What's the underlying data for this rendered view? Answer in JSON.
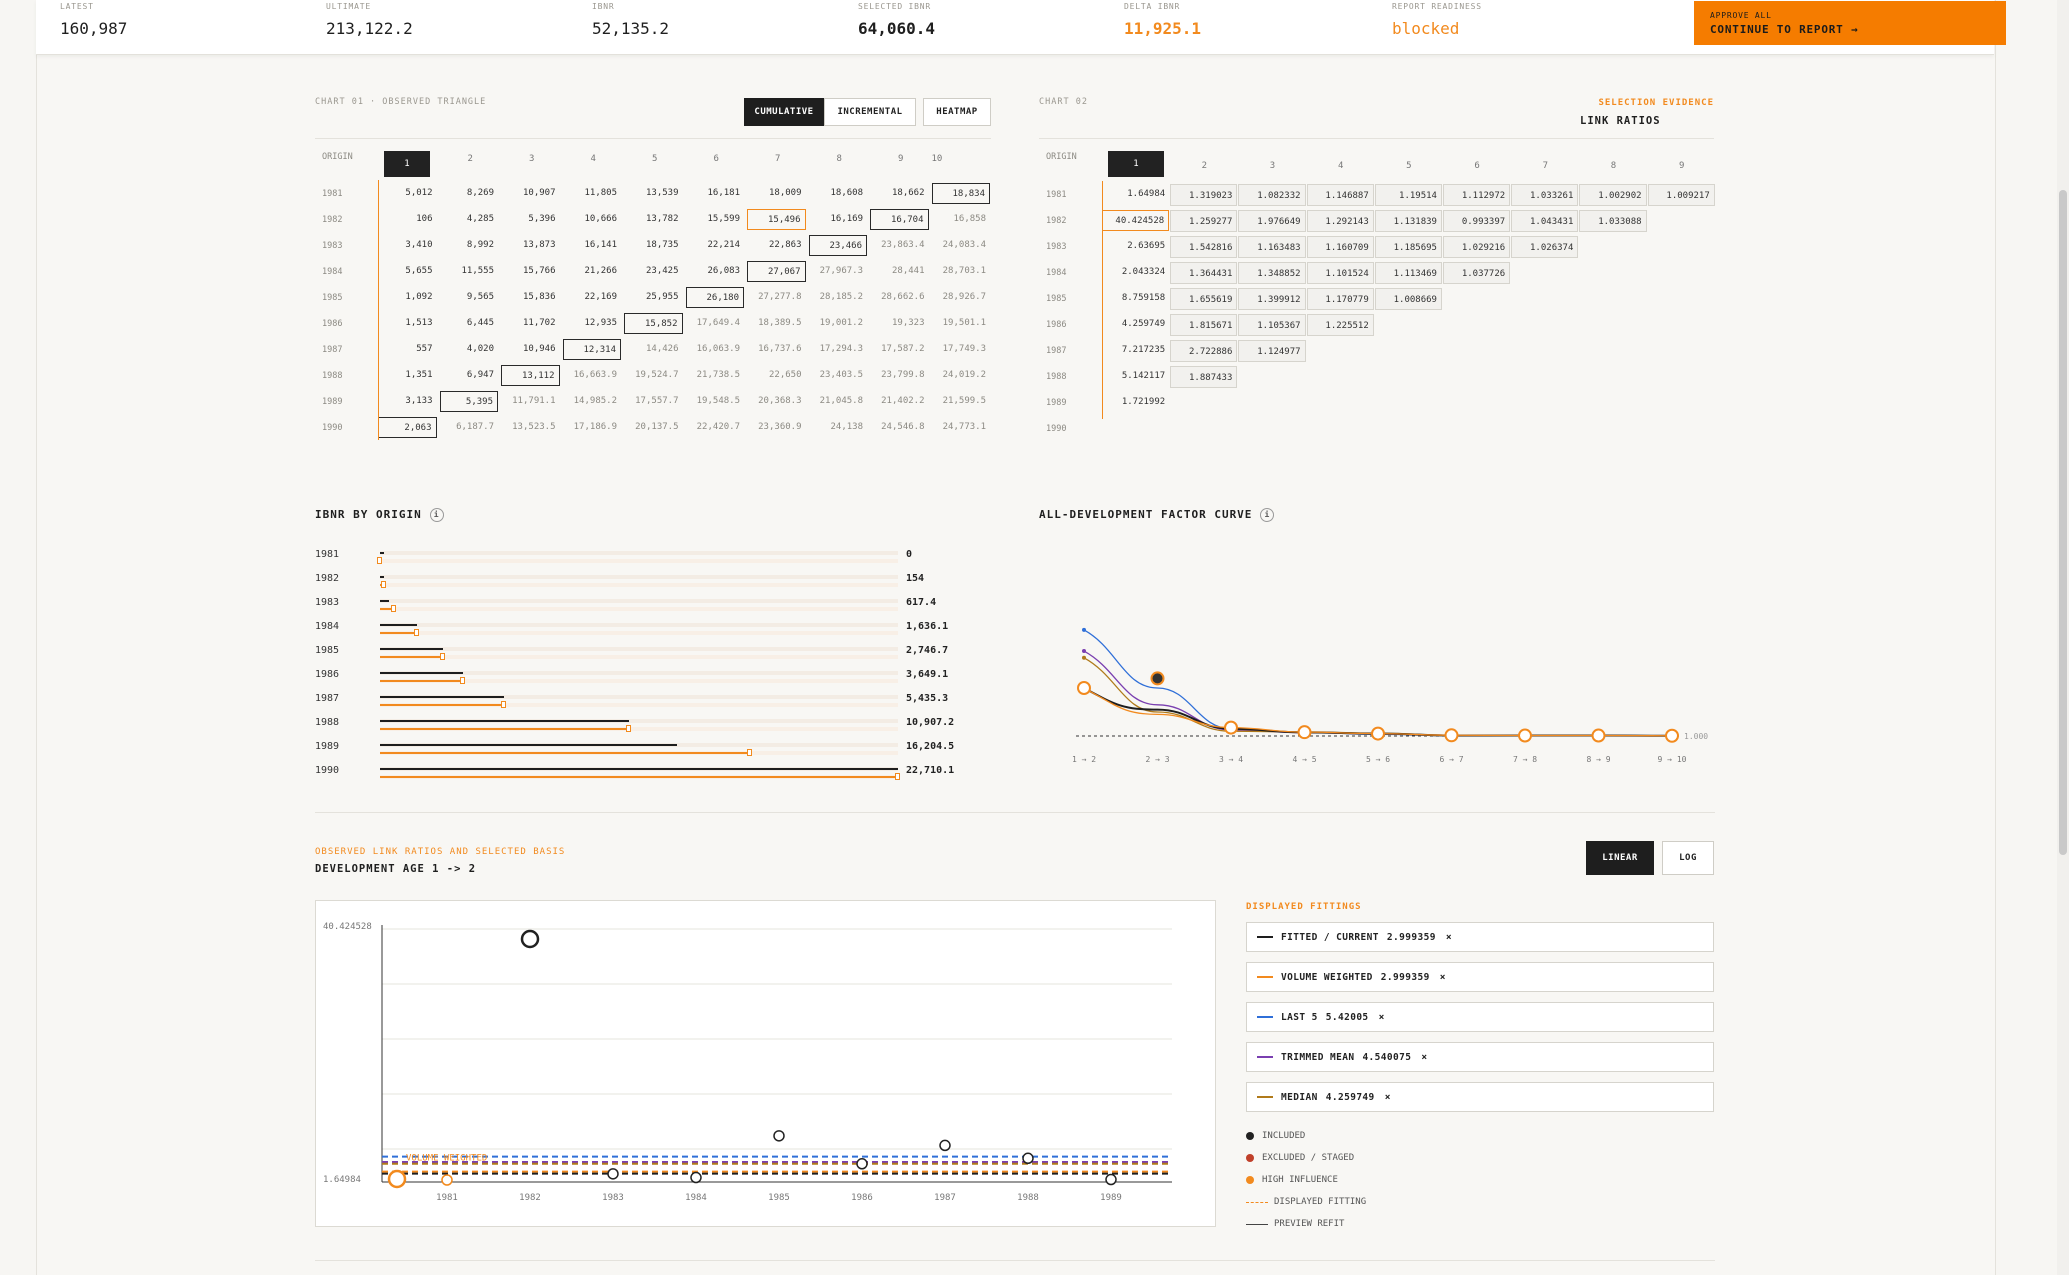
{
  "kpis": [
    {
      "label": "LATEST",
      "value": "160,987",
      "style": ""
    },
    {
      "label": "ULTIMATE",
      "value": "213,122.2",
      "style": ""
    },
    {
      "label": "IBNR",
      "value": "52,135.2",
      "style": ""
    },
    {
      "label": "SELECTED IBNR",
      "value": "64,060.4",
      "style": "bold"
    },
    {
      "label": "DELTA IBNR",
      "value": "11,925.1",
      "style": "orange bold"
    },
    {
      "label": "REPORT READINESS",
      "value": "blocked",
      "style": "orange"
    }
  ],
  "approve": {
    "line1": "APPROVE ALL",
    "line2": "CONTINUE TO REPORT →"
  },
  "chart1": {
    "label": "CHART 01 · OBSERVED TRIANGLE",
    "tabs": [
      "CUMULATIVE",
      "INCREMENTAL",
      "HEATMAP"
    ],
    "active_tab": "CUMULATIVE",
    "origin_label": "ORIGIN",
    "columns": [
      "1",
      "2",
      "3",
      "4",
      "5",
      "6",
      "7",
      "8",
      "9",
      "10"
    ],
    "selected_column": "1",
    "rows": [
      {
        "origin": "1981",
        "cells": [
          "5,012",
          "8,269",
          "10,907",
          "11,805",
          "13,539",
          "16,181",
          "18,009",
          "18,608",
          "18,662",
          "18,834"
        ]
      },
      {
        "origin": "1982",
        "cells": [
          "106",
          "4,285",
          "5,396",
          "10,666",
          "13,782",
          "15,599",
          "15,496",
          "16,169",
          "16,704",
          "16,858"
        ]
      },
      {
        "origin": "1983",
        "cells": [
          "3,410",
          "8,992",
          "13,873",
          "16,141",
          "18,735",
          "22,214",
          "22,863",
          "23,466",
          "23,863.4",
          "24,083.4"
        ]
      },
      {
        "origin": "1984",
        "cells": [
          "5,655",
          "11,555",
          "15,766",
          "21,266",
          "23,425",
          "26,083",
          "27,067",
          "27,967.3",
          "28,441",
          "28,703.1"
        ]
      },
      {
        "origin": "1985",
        "cells": [
          "1,092",
          "9,565",
          "15,836",
          "22,169",
          "25,955",
          "26,180",
          "27,277.8",
          "28,185.2",
          "28,662.6",
          "28,926.7"
        ]
      },
      {
        "origin": "1986",
        "cells": [
          "1,513",
          "6,445",
          "11,702",
          "12,935",
          "15,852",
          "17,649.4",
          "18,389.5",
          "19,001.2",
          "19,323",
          "19,501.1"
        ]
      },
      {
        "origin": "1987",
        "cells": [
          "557",
          "4,020",
          "10,946",
          "12,314",
          "14,426",
          "16,063.9",
          "16,737.6",
          "17,294.3",
          "17,587.2",
          "17,749.3"
        ]
      },
      {
        "origin": "1988",
        "cells": [
          "1,351",
          "6,947",
          "13,112",
          "16,663.9",
          "19,524.7",
          "21,738.5",
          "22,650",
          "23,403.5",
          "23,799.8",
          "24,019.2"
        ]
      },
      {
        "origin": "1989",
        "cells": [
          "3,133",
          "5,395",
          "11,791.1",
          "14,985.2",
          "17,557.7",
          "19,548.5",
          "20,368.3",
          "21,045.8",
          "21,402.2",
          "21,599.5"
        ]
      },
      {
        "origin": "1990",
        "cells": [
          "2,063",
          "6,187.7",
          "13,523.5",
          "17,186.9",
          "20,137.5",
          "22,420.7",
          "23,360.9",
          "24,138",
          "24,546.8",
          "24,773.1"
        ]
      }
    ]
  },
  "chart2": {
    "label": "CHART 02",
    "evidence_label": "SELECTION EVIDENCE",
    "title": "LINK RATIOS",
    "origin_label": "ORIGIN",
    "columns": [
      "1",
      "2",
      "3",
      "4",
      "5",
      "6",
      "7",
      "8",
      "9"
    ],
    "selected_column": "1",
    "rows": [
      {
        "origin": "1981",
        "cells": [
          "1.64984",
          "1.319023",
          "1.082332",
          "1.146887",
          "1.19514",
          "1.112972",
          "1.033261",
          "1.002902",
          "1.009217"
        ]
      },
      {
        "origin": "1982",
        "cells": [
          "40.424528",
          "1.259277",
          "1.976649",
          "1.292143",
          "1.131839",
          "0.993397",
          "1.043431",
          "1.033088"
        ]
      },
      {
        "origin": "1983",
        "cells": [
          "2.63695",
          "1.542816",
          "1.163483",
          "1.160709",
          "1.185695",
          "1.029216",
          "1.026374"
        ]
      },
      {
        "origin": "1984",
        "cells": [
          "2.043324",
          "1.364431",
          "1.348852",
          "1.101524",
          "1.113469",
          "1.037726"
        ]
      },
      {
        "origin": "1985",
        "cells": [
          "8.759158",
          "1.655619",
          "1.399912",
          "1.170779",
          "1.008669"
        ]
      },
      {
        "origin": "1986",
        "cells": [
          "4.259749",
          "1.815671",
          "1.105367",
          "1.225512"
        ]
      },
      {
        "origin": "1987",
        "cells": [
          "7.217235",
          "2.722886",
          "1.124977"
        ]
      },
      {
        "origin": "1988",
        "cells": [
          "5.142117",
          "1.887433"
        ]
      },
      {
        "origin": "1989",
        "cells": [
          "1.721992"
        ]
      },
      {
        "origin": "1990",
        "cells": []
      }
    ]
  },
  "ibnr": {
    "title": "IBNR BY ORIGIN",
    "info": "i",
    "rows": [
      {
        "origin": "1981",
        "value_label": "0",
        "base": 0,
        "selected": 0
      },
      {
        "origin": "1982",
        "value_label": "154",
        "base": 154,
        "selected": 154
      },
      {
        "origin": "1983",
        "value_label": "617.4",
        "base": 409,
        "selected": 617.4
      },
      {
        "origin": "1984",
        "value_label": "1,636.1",
        "base": 1636.1,
        "selected": 1636.1
      },
      {
        "origin": "1985",
        "value_label": "2,746.7",
        "base": 2746.7,
        "selected": 2746.7
      },
      {
        "origin": "1986",
        "value_label": "3,649.1",
        "base": 3649.1,
        "selected": 3649.1
      },
      {
        "origin": "1987",
        "value_label": "5,435.3",
        "base": 5435.3,
        "selected": 5435.3
      },
      {
        "origin": "1988",
        "value_label": "10,907.2",
        "base": 10907.2,
        "selected": 10907.2
      },
      {
        "origin": "1989",
        "value_label": "16,204.5",
        "base": 13000,
        "selected": 16204.5
      },
      {
        "origin": "1990",
        "value_label": "22,710.1",
        "base": 22710.1,
        "selected": 22710.1
      }
    ],
    "max": 22710.1
  },
  "chart_data": {
    "type": "line",
    "title": "ALL-DEVELOPMENT FACTOR CURVE",
    "info": "i",
    "x": [
      "1 → 2",
      "2 → 3",
      "3 → 4",
      "4 → 5",
      "5 → 6",
      "6 → 7",
      "7 → 8",
      "8 → 9",
      "9 → 10"
    ],
    "baseline_label": "1.000",
    "series": [
      {
        "name": "Last 5",
        "color": "#2f6fd8",
        "values": [
          5.42,
          3.0,
          1.3,
          1.15,
          1.07,
          1.02,
          1.03,
          1.02,
          1.01
        ]
      },
      {
        "name": "Trimmed Mean",
        "color": "#7a3fb0",
        "values": [
          4.54,
          2.3,
          1.25,
          1.14,
          1.09,
          1.03,
          1.03,
          1.02,
          1.01
        ]
      },
      {
        "name": "Median",
        "color": "#b07a1a",
        "values": [
          4.26,
          2.0,
          1.2,
          1.17,
          1.12,
          1.03,
          1.03,
          1.02,
          1.01
        ]
      },
      {
        "name": "Fitted / Current",
        "color": "#1e1e1e",
        "values": [
          3.0,
          2.1,
          1.3,
          1.15,
          1.1,
          1.02,
          1.02,
          1.02,
          1.01
        ]
      },
      {
        "name": "Volume Weighted",
        "color": "#f28a1e",
        "values": [
          3.0,
          1.9,
          1.35,
          1.16,
          1.1,
          1.03,
          1.02,
          1.02,
          1.01
        ]
      }
    ],
    "selected_markers": [
      3.0,
      3.4,
      1.35,
      1.16,
      1.1,
      1.03,
      1.02,
      1.02,
      1.01
    ]
  },
  "scatter": {
    "label": "OBSERVED LINK RATIOS AND SELECTED BASIS",
    "title": "DEVELOPMENT AGE 1 -> 2",
    "toggle": [
      "LINEAR",
      "LOG"
    ],
    "active": "LINEAR",
    "ymax_label": "40.424528",
    "ymin_label": "1.64984",
    "ymin": 1.64984,
    "ymax": 40.424528,
    "x": [
      "1981",
      "1982",
      "1983",
      "1984",
      "1985",
      "1986",
      "1987",
      "1988",
      "1989"
    ],
    "points": [
      1.64984,
      40.424528,
      2.63695,
      2.043324,
      8.759158,
      4.259749,
      7.217235,
      5.142117,
      1.721992
    ],
    "inline_label": "VOLUME WEIGHTED",
    "lines": [
      {
        "name": "Last 5",
        "color": "#2f6fd8",
        "value": 5.42005
      },
      {
        "name": "Trimmed",
        "color": "#7a3fb0",
        "value": 4.540075
      },
      {
        "name": "Median",
        "color": "#b07a1a",
        "value": 4.259749
      },
      {
        "name": "Volume",
        "color": "#f28a1e",
        "value": 2.999359
      },
      {
        "name": "Fitted",
        "color": "#1e1e1e",
        "value": 2.999359
      }
    ]
  },
  "fittings": {
    "title": "DISPLAYED FITTINGS",
    "items": [
      {
        "name": "FITTED / CURRENT",
        "value": "2.999359",
        "color": "#1e1e1e"
      },
      {
        "name": "VOLUME WEIGHTED",
        "value": "2.999359",
        "color": "#f28a1e"
      },
      {
        "name": "LAST 5",
        "value": "5.42005",
        "color": "#2f6fd8"
      },
      {
        "name": "TRIMMED MEAN",
        "value": "4.540075",
        "color": "#7a3fb0"
      },
      {
        "name": "MEDIAN",
        "value": "4.259749",
        "color": "#b07a1a"
      }
    ],
    "remove": "×",
    "keys": [
      {
        "label": "INCLUDED",
        "color": "#222"
      },
      {
        "label": "EXCLUDED / STAGED",
        "color": "#c0402a"
      },
      {
        "label": "HIGH INFLUENCE",
        "color": "#f28a1e"
      },
      {
        "label": "DISPLAYED FITTING",
        "color": "#f28a1e"
      },
      {
        "label": "PREVIEW REFIT",
        "color": "#444"
      }
    ]
  }
}
